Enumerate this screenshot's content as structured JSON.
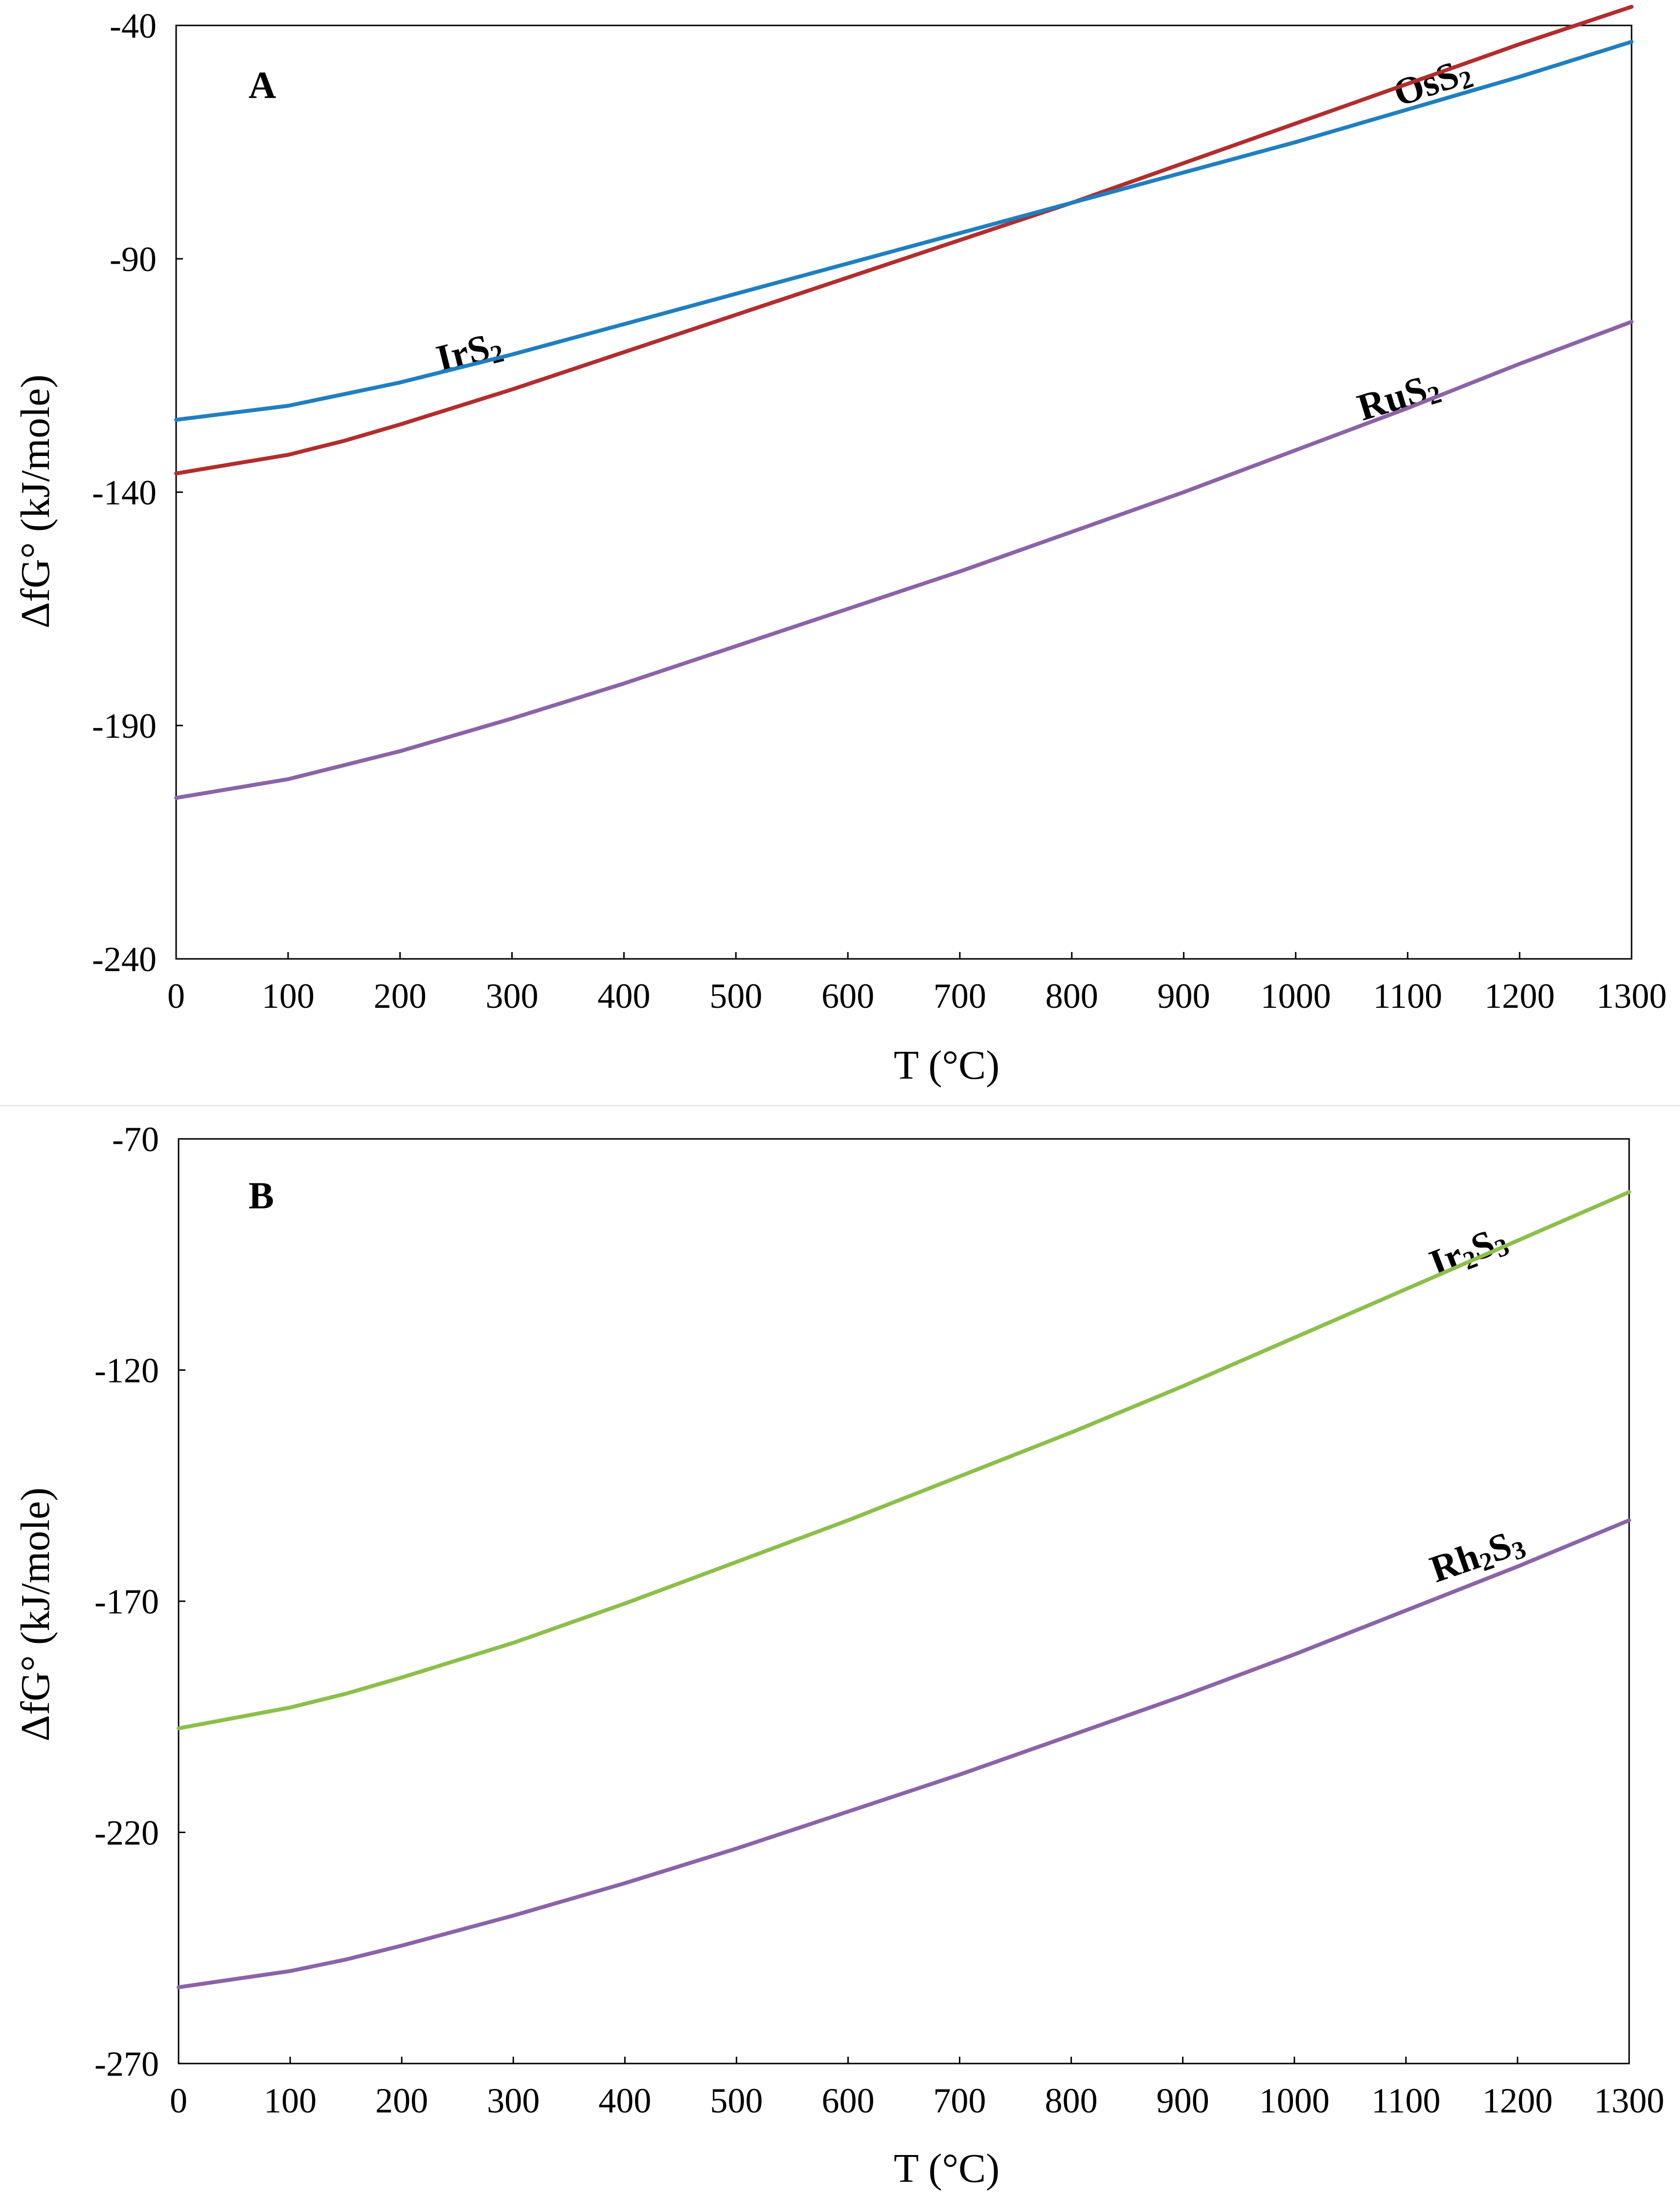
{
  "chart_data": [
    {
      "type": "line",
      "panel_label": "A",
      "xlabel": "T (°C)",
      "ylabel": "ΔfG° (kJ/mole)",
      "xlim": [
        0,
        1300
      ],
      "ylim": [
        -240,
        -40
      ],
      "xticks": [
        "0",
        "100",
        "200",
        "300",
        "400",
        "500",
        "600",
        "700",
        "800",
        "900",
        "1000",
        "1100",
        "1200",
        "1300"
      ],
      "yticks": [
        "-40",
        "-90",
        "-140",
        "-190",
        "-240"
      ],
      "grid": false,
      "x": [
        0,
        100,
        150,
        200,
        300,
        400,
        500,
        600,
        700,
        800,
        900,
        1000,
        1100,
        1200,
        1300
      ],
      "series": [
        {
          "name": "OsS2",
          "label_main": "OsS",
          "label_sub": "2",
          "color": "#B22D2D",
          "values": [
            -136,
            -132,
            -129,
            -125.5,
            -118,
            -110,
            -102,
            -94,
            -86,
            -78,
            -69.5,
            -61,
            -52.5,
            -44,
            -36
          ]
        },
        {
          "name": "IrS2",
          "label_main": "IrS",
          "label_sub": "2",
          "color": "#1F7FC0",
          "values": [
            -124.5,
            -121.5,
            -119,
            -116.5,
            -110.5,
            -104,
            -97.5,
            -91,
            -84.5,
            -78,
            -71.5,
            -65,
            -58,
            -51,
            -43.5
          ]
        },
        {
          "name": "RuS2",
          "label_main": "RuS",
          "label_sub": "2",
          "color": "#8B63A8",
          "values": [
            -205.5,
            -201.5,
            -198.5,
            -195.5,
            -188.5,
            -181,
            -173,
            -165,
            -157,
            -148.5,
            -140,
            -131,
            -122,
            -112.5,
            -103.5
          ]
        }
      ]
    },
    {
      "type": "line",
      "panel_label": "B",
      "xlabel": "T (°C)",
      "ylabel": "ΔfG° (kJ/mole)",
      "xlim": [
        0,
        1300
      ],
      "ylim": [
        -270,
        -70
      ],
      "xticks": [
        "0",
        "100",
        "200",
        "300",
        "400",
        "500",
        "600",
        "700",
        "800",
        "900",
        "1000",
        "1100",
        "1200",
        "1300"
      ],
      "yticks": [
        "-70",
        "-120",
        "-170",
        "-220",
        "-270"
      ],
      "grid": false,
      "x": [
        0,
        100,
        150,
        200,
        300,
        400,
        500,
        600,
        700,
        800,
        900,
        1000,
        1100,
        1200,
        1300
      ],
      "series": [
        {
          "name": "Ir2S3",
          "label_main": "Ir",
          "label_sub": "2",
          "label_main2": "S",
          "label_sub2": "3",
          "color": "#8CBF4B",
          "values": [
            -197.5,
            -193,
            -190,
            -186.5,
            -179,
            -170.5,
            -161.5,
            -152.5,
            -143,
            -133.5,
            -123.5,
            -113,
            -102.5,
            -92,
            -81.5
          ]
        },
        {
          "name": "Rh2S3",
          "label_main": "Rh",
          "label_sub": "2",
          "label_main2": "S",
          "label_sub2": "3",
          "color": "#8B63A8",
          "values": [
            -253.5,
            -250,
            -247.5,
            -244.5,
            -238,
            -231,
            -223.5,
            -215.5,
            -207.5,
            -199,
            -190.5,
            -181.5,
            -172,
            -162.5,
            -152.5
          ]
        }
      ]
    }
  ]
}
